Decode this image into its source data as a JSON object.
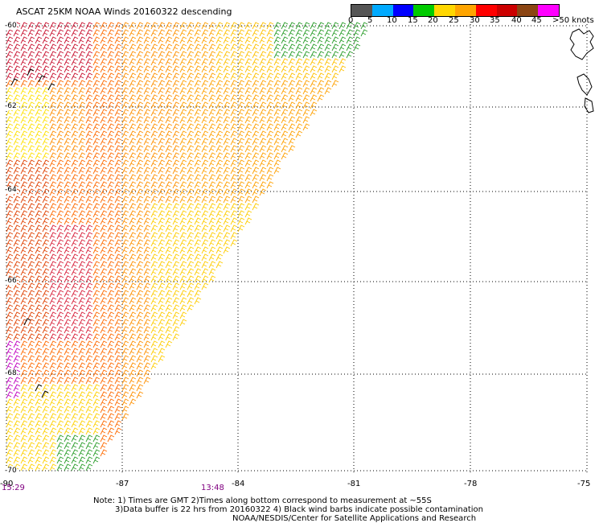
{
  "header": {
    "title": "ASCAT 25KM NOAA Winds 20160322 descending"
  },
  "colorbar": {
    "labels": [
      "0",
      "5",
      "10",
      "15",
      "20",
      "25",
      "30",
      "35",
      "40",
      "45",
      ">50 knots"
    ],
    "colors": [
      "#555555",
      "#00aaff",
      "#0000ff",
      "#00cc00",
      "#ffd700",
      "#ffa500",
      "#ff0000",
      "#cc0000",
      "#8b4513",
      "#ff00ff",
      "#7f00ff"
    ]
  },
  "axes": {
    "x_ticks": [
      "-90",
      "-87",
      "-84",
      "-81",
      "-78",
      "-75"
    ],
    "y_ticks": [
      "-60",
      "-62",
      "-64",
      "-66",
      "-68",
      "-70"
    ],
    "times": [
      "15:29",
      "13:48"
    ]
  },
  "notes": {
    "line1": "Note: 1) Times are GMT 2)Times along bottom correspond to measurement at ~55S",
    "line2": "3)Data buffer is 22 hrs from 20160322 4) Black wind barbs indicate possible contamination",
    "line3": "NOAA/NESDIS/Center for Satellite Applications and Research"
  }
}
